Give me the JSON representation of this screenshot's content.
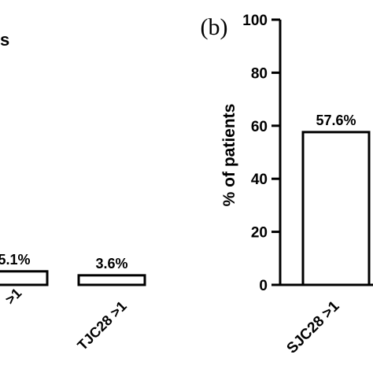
{
  "chart_data": [
    {
      "type": "bar",
      "title": "",
      "ylabel": "",
      "title_fragment": "s",
      "categories": [
        "…>1",
        "TJC28 >1"
      ],
      "values": [
        5.1,
        3.6
      ],
      "data_labels": [
        "5.1%",
        "3.6%"
      ],
      "tick_fragment": ">1",
      "ylim": [
        0,
        100
      ]
    },
    {
      "type": "bar",
      "panel_label": "(b)",
      "ylabel": "% of patients",
      "categories": [
        "SJC28 >1"
      ],
      "values": [
        57.6
      ],
      "data_labels": [
        "57.6%"
      ],
      "yticks": [
        "0",
        "20",
        "40",
        "60",
        "80",
        "100"
      ],
      "ylim": [
        0,
        100
      ],
      "grid": false
    }
  ]
}
